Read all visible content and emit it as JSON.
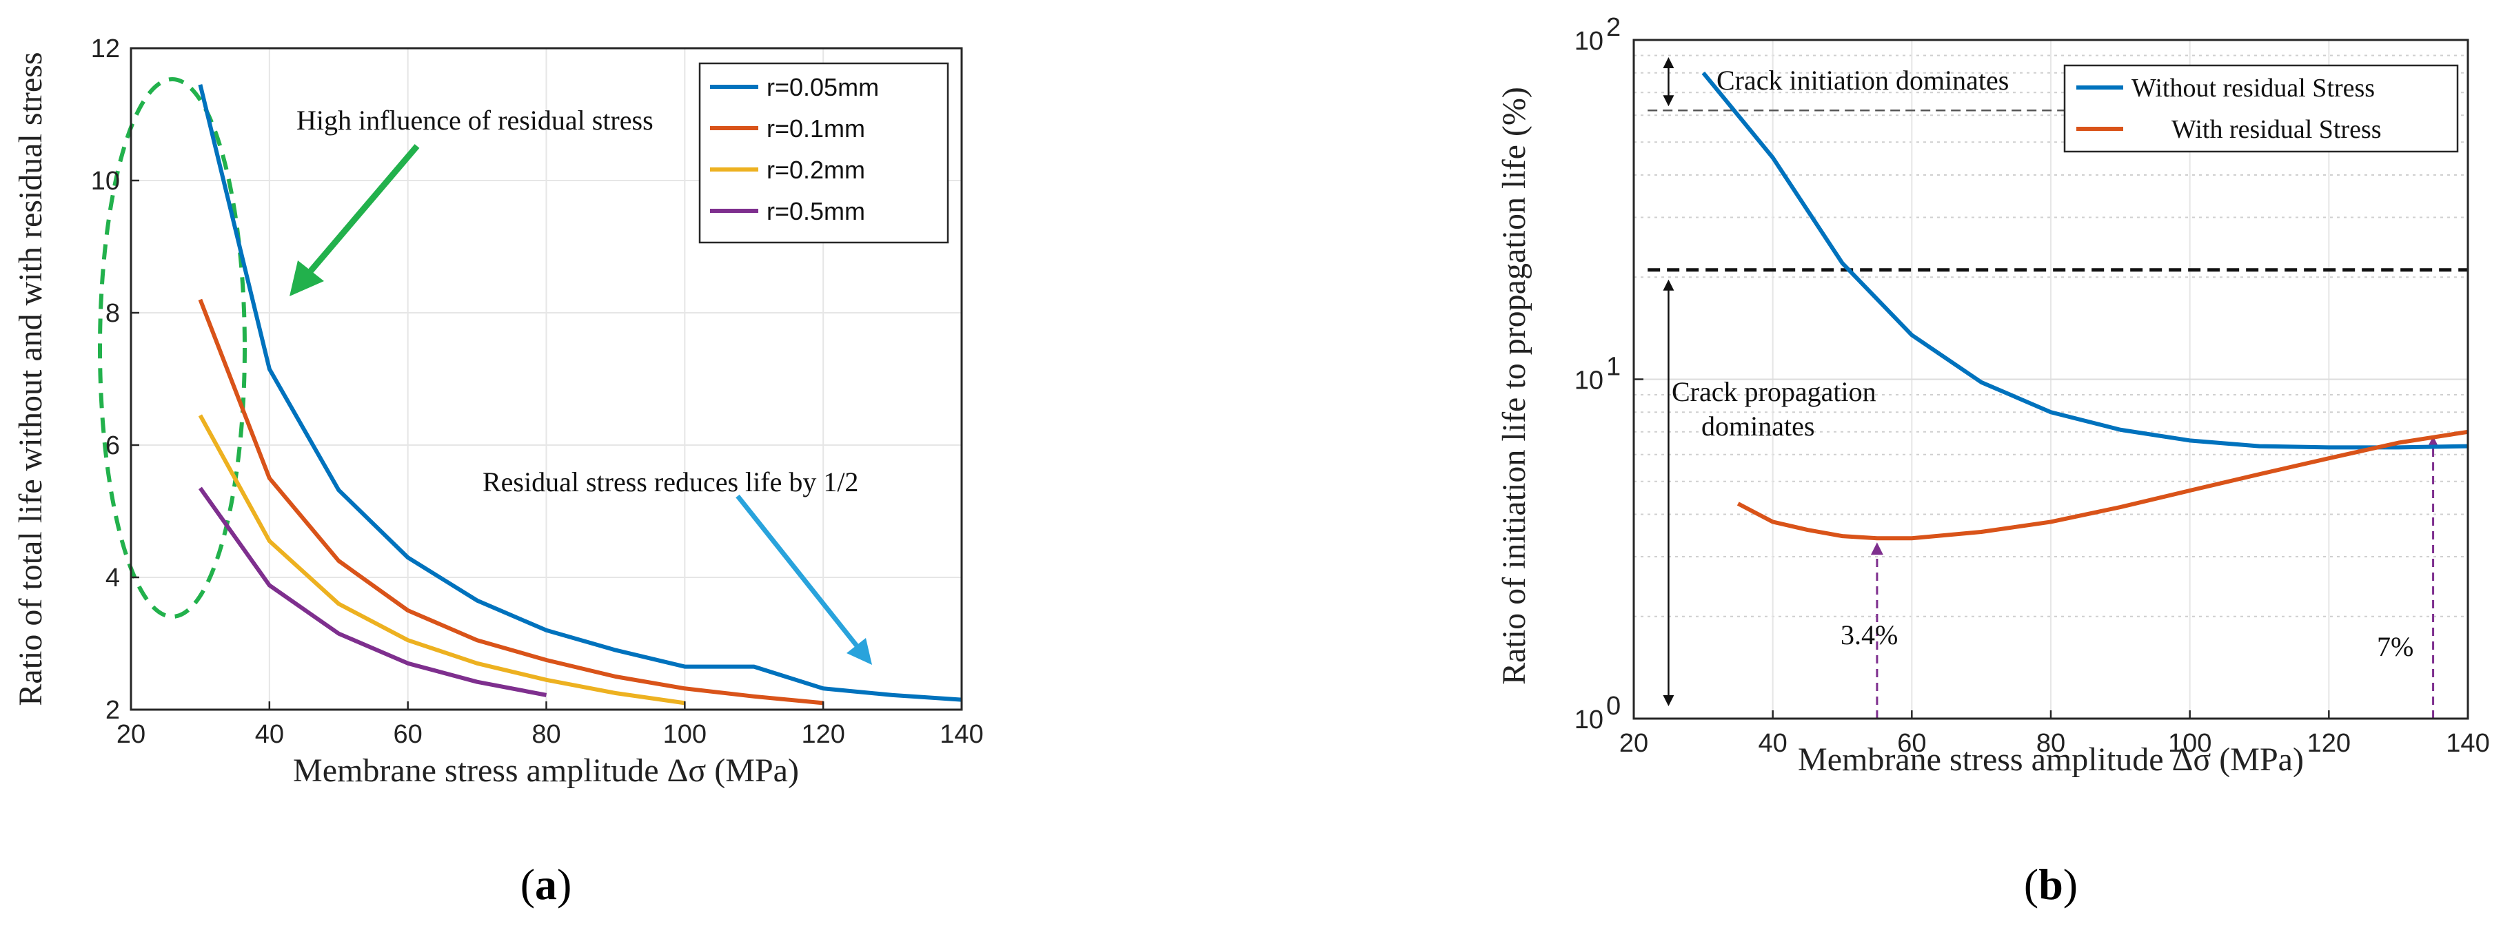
{
  "chart_data": [
    {
      "id": "a",
      "type": "line",
      "caption_letter": "a",
      "xlabel": "Membrane stress amplitude Δσ (MPa)",
      "ylabel": "Ratio of total life without and with residual stress",
      "xlim": [
        20,
        140
      ],
      "ylim": [
        2,
        12
      ],
      "xticks": [
        20,
        40,
        60,
        80,
        100,
        120,
        140
      ],
      "yticks": [
        2,
        4,
        6,
        8,
        10,
        12
      ],
      "legend_position": "top-right",
      "series": [
        {
          "name": "r=0.05mm",
          "color": "#0072BD",
          "x": [
            30,
            40,
            50,
            60,
            70,
            80,
            90,
            100,
            110,
            120,
            130,
            140
          ],
          "y": [
            11.45,
            7.15,
            5.32,
            4.3,
            3.65,
            3.2,
            2.9,
            2.65,
            2.65,
            2.32,
            2.22,
            2.15
          ]
        },
        {
          "name": "r=0.1mm",
          "color": "#D95319",
          "x": [
            30,
            40,
            50,
            60,
            70,
            80,
            90,
            100,
            110,
            120
          ],
          "y": [
            8.2,
            5.5,
            4.25,
            3.5,
            3.05,
            2.75,
            2.5,
            2.32,
            2.2,
            2.1
          ]
        },
        {
          "name": "r=0.2mm",
          "color": "#EDB120",
          "x": [
            30,
            40,
            50,
            60,
            70,
            80,
            90,
            100
          ],
          "y": [
            6.45,
            4.55,
            3.6,
            3.05,
            2.7,
            2.45,
            2.25,
            2.1
          ]
        },
        {
          "name": "r=0.5mm",
          "color": "#7E2F8E",
          "x": [
            30,
            40,
            50,
            60,
            70,
            80
          ],
          "y": [
            5.35,
            3.88,
            3.15,
            2.7,
            2.42,
            2.22
          ]
        }
      ],
      "annotations": [
        {
          "text": "High influence of residual stress",
          "color": "#22b14c"
        },
        {
          "text": "Residual stress reduces life by 1/2",
          "color": "#29a3dc"
        }
      ]
    },
    {
      "id": "b",
      "type": "line",
      "yscale": "log",
      "caption_letter": "b",
      "xlabel": "Membrane stress amplitude Δσ (MPa)",
      "ylabel": "Ratio of initiation life to propagation life (%)",
      "xlim": [
        20,
        140
      ],
      "ylim": [
        1,
        100
      ],
      "xticks": [
        20,
        40,
        60,
        80,
        100,
        120,
        140
      ],
      "yticks": [
        1,
        10,
        100
      ],
      "ytick_labels": [
        [
          "10",
          "0"
        ],
        [
          "10",
          "1"
        ],
        [
          "10",
          "2"
        ]
      ],
      "legend_position": "top-right",
      "series": [
        {
          "name": "Without residual Stress",
          "color": "#0072BD",
          "x": [
            30,
            40,
            50,
            60,
            70,
            80,
            90,
            100,
            110,
            120,
            130,
            140
          ],
          "y": [
            80,
            45,
            22,
            13.5,
            9.8,
            8.0,
            7.1,
            6.6,
            6.35,
            6.3,
            6.3,
            6.35
          ]
        },
        {
          "name": "With residual Stress",
          "color": "#D95319",
          "x": [
            35,
            40,
            45,
            50,
            55,
            60,
            70,
            80,
            90,
            100,
            110,
            120,
            130,
            140
          ],
          "y": [
            4.3,
            3.8,
            3.6,
            3.45,
            3.4,
            3.4,
            3.55,
            3.8,
            4.2,
            4.7,
            5.25,
            5.85,
            6.5,
            7.0
          ]
        }
      ],
      "reference_lines": [
        {
          "y": 62,
          "x_end": 125,
          "style": "thin-dashed"
        },
        {
          "y": 21,
          "x_end": 140,
          "style": "thick-dashed"
        }
      ],
      "annotations": [
        {
          "text": "Crack initiation dominates"
        },
        {
          "text_lines": [
            "Crack propagation",
            "dominates"
          ]
        },
        {
          "text": "3.4%",
          "x": 55,
          "y": 3.4,
          "color": "#7E2F8E"
        },
        {
          "text": "7%",
          "x": 135,
          "y": 7.0,
          "color": "#7E2F8E"
        }
      ]
    }
  ]
}
